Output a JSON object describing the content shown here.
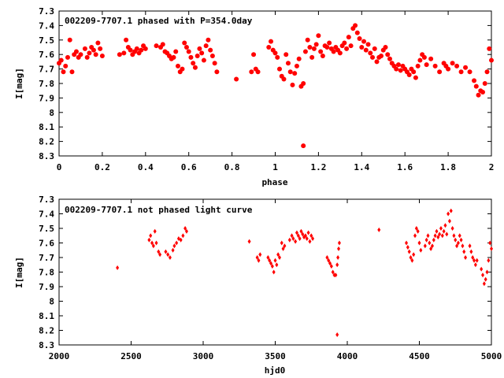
{
  "chart_data": [
    {
      "type": "scatter",
      "title": "002209-7707.1 phased with P=354.0day",
      "xlabel": "phase",
      "ylabel": "I[mag]",
      "xlim": [
        0,
        2
      ],
      "ylim": [
        7.3,
        8.3
      ],
      "y_inverted": true,
      "x_ticks": [
        "0",
        "0.2",
        "0.4",
        "0.6",
        "0.8",
        "1",
        "1.2",
        "1.4",
        "1.6",
        "1.8",
        "2"
      ],
      "y_ticks": [
        "7.3",
        "7.4",
        "7.5",
        "7.6",
        "7.7",
        "7.8",
        "7.9",
        "8",
        "8.1",
        "8.2",
        "8.3"
      ],
      "marker_color": "#ff0000",
      "marker": "filled-circle",
      "grid": false,
      "points": [
        [
          0.0,
          7.66
        ],
        [
          0.01,
          7.64
        ],
        [
          0.02,
          7.72
        ],
        [
          0.03,
          7.68
        ],
        [
          0.04,
          7.62
        ],
        [
          0.05,
          7.5
        ],
        [
          0.06,
          7.72
        ],
        [
          0.07,
          7.6
        ],
        [
          0.08,
          7.58
        ],
        [
          0.09,
          7.62
        ],
        [
          0.1,
          7.6
        ],
        [
          0.12,
          7.56
        ],
        [
          0.13,
          7.62
        ],
        [
          0.14,
          7.59
        ],
        [
          0.15,
          7.55
        ],
        [
          0.16,
          7.57
        ],
        [
          0.17,
          7.6
        ],
        [
          0.18,
          7.52
        ],
        [
          0.19,
          7.56
        ],
        [
          0.2,
          7.61
        ],
        [
          0.28,
          7.6
        ],
        [
          0.3,
          7.59
        ],
        [
          0.31,
          7.5
        ],
        [
          0.32,
          7.55
        ],
        [
          0.33,
          7.57
        ],
        [
          0.34,
          7.6
        ],
        [
          0.35,
          7.58
        ],
        [
          0.36,
          7.56
        ],
        [
          0.37,
          7.59
        ],
        [
          0.38,
          7.57
        ],
        [
          0.39,
          7.54
        ],
        [
          0.4,
          7.56
        ],
        [
          0.45,
          7.54
        ],
        [
          0.47,
          7.55
        ],
        [
          0.48,
          7.53
        ],
        [
          0.49,
          7.58
        ],
        [
          0.5,
          7.59
        ],
        [
          0.51,
          7.61
        ],
        [
          0.52,
          7.63
        ],
        [
          0.53,
          7.62
        ],
        [
          0.54,
          7.58
        ],
        [
          0.55,
          7.68
        ],
        [
          0.56,
          7.72
        ],
        [
          0.57,
          7.7
        ],
        [
          0.58,
          7.52
        ],
        [
          0.59,
          7.55
        ],
        [
          0.6,
          7.58
        ],
        [
          0.61,
          7.62
        ],
        [
          0.62,
          7.66
        ],
        [
          0.63,
          7.69
        ],
        [
          0.64,
          7.61
        ],
        [
          0.65,
          7.56
        ],
        [
          0.66,
          7.59
        ],
        [
          0.67,
          7.64
        ],
        [
          0.68,
          7.54
        ],
        [
          0.69,
          7.5
        ],
        [
          0.7,
          7.57
        ],
        [
          0.71,
          7.61
        ],
        [
          0.72,
          7.66
        ],
        [
          0.73,
          7.72
        ],
        [
          0.82,
          7.77
        ],
        [
          0.89,
          7.72
        ],
        [
          0.9,
          7.6
        ],
        [
          0.91,
          7.7
        ],
        [
          0.92,
          7.72
        ],
        [
          0.97,
          7.55
        ],
        [
          0.98,
          7.51
        ],
        [
          0.99,
          7.57
        ],
        [
          1.0,
          7.59
        ],
        [
          1.01,
          7.62
        ],
        [
          1.02,
          7.7
        ],
        [
          1.03,
          7.75
        ],
        [
          1.04,
          7.77
        ],
        [
          1.05,
          7.6
        ],
        [
          1.06,
          7.66
        ],
        [
          1.07,
          7.72
        ],
        [
          1.08,
          7.81
        ],
        [
          1.09,
          7.73
        ],
        [
          1.1,
          7.68
        ],
        [
          1.11,
          7.63
        ],
        [
          1.12,
          7.82
        ],
        [
          1.13,
          7.8
        ],
        [
          1.13,
          8.23
        ],
        [
          1.14,
          7.58
        ],
        [
          1.15,
          7.5
        ],
        [
          1.16,
          7.55
        ],
        [
          1.17,
          7.62
        ],
        [
          1.18,
          7.56
        ],
        [
          1.19,
          7.53
        ],
        [
          1.2,
          7.47
        ],
        [
          1.21,
          7.58
        ],
        [
          1.22,
          7.61
        ],
        [
          1.23,
          7.54
        ],
        [
          1.24,
          7.55
        ],
        [
          1.25,
          7.52
        ],
        [
          1.26,
          7.56
        ],
        [
          1.27,
          7.58
        ],
        [
          1.28,
          7.55
        ],
        [
          1.29,
          7.57
        ],
        [
          1.3,
          7.59
        ],
        [
          1.31,
          7.54
        ],
        [
          1.32,
          7.52
        ],
        [
          1.33,
          7.56
        ],
        [
          1.34,
          7.48
        ],
        [
          1.35,
          7.54
        ],
        [
          1.36,
          7.42
        ],
        [
          1.37,
          7.4
        ],
        [
          1.38,
          7.45
        ],
        [
          1.39,
          7.49
        ],
        [
          1.4,
          7.55
        ],
        [
          1.41,
          7.51
        ],
        [
          1.42,
          7.57
        ],
        [
          1.43,
          7.53
        ],
        [
          1.44,
          7.59
        ],
        [
          1.45,
          7.62
        ],
        [
          1.46,
          7.56
        ],
        [
          1.47,
          7.65
        ],
        [
          1.48,
          7.62
        ],
        [
          1.49,
          7.61
        ],
        [
          1.5,
          7.57
        ],
        [
          1.51,
          7.55
        ],
        [
          1.52,
          7.6
        ],
        [
          1.53,
          7.63
        ],
        [
          1.54,
          7.66
        ],
        [
          1.55,
          7.68
        ],
        [
          1.56,
          7.7
        ],
        [
          1.57,
          7.67
        ],
        [
          1.58,
          7.71
        ],
        [
          1.59,
          7.68
        ],
        [
          1.6,
          7.7
        ],
        [
          1.61,
          7.72
        ],
        [
          1.62,
          7.74
        ],
        [
          1.63,
          7.7
        ],
        [
          1.64,
          7.72
        ],
        [
          1.65,
          7.76
        ],
        [
          1.66,
          7.68
        ],
        [
          1.67,
          7.64
        ],
        [
          1.68,
          7.6
        ],
        [
          1.69,
          7.62
        ],
        [
          1.7,
          7.67
        ],
        [
          1.72,
          7.63
        ],
        [
          1.74,
          7.68
        ],
        [
          1.76,
          7.72
        ],
        [
          1.78,
          7.66
        ],
        [
          1.79,
          7.68
        ],
        [
          1.8,
          7.7
        ],
        [
          1.82,
          7.66
        ],
        [
          1.84,
          7.68
        ],
        [
          1.86,
          7.72
        ],
        [
          1.88,
          7.69
        ],
        [
          1.9,
          7.72
        ],
        [
          1.92,
          7.78
        ],
        [
          1.93,
          7.82
        ],
        [
          1.94,
          7.88
        ],
        [
          1.95,
          7.85
        ],
        [
          1.96,
          7.86
        ],
        [
          1.97,
          7.8
        ],
        [
          1.98,
          7.72
        ],
        [
          1.99,
          7.56
        ],
        [
          2.0,
          7.64
        ]
      ]
    },
    {
      "type": "scatter",
      "title": "002209-7707.1 not phased light curve",
      "xlabel": "hjd0",
      "ylabel": "I[mag]",
      "xlim": [
        2000,
        5000
      ],
      "ylim": [
        7.3,
        8.3
      ],
      "y_inverted": true,
      "x_ticks": [
        "2000",
        "2500",
        "3000",
        "3500",
        "4000",
        "4500",
        "5000"
      ],
      "y_ticks": [
        "7.3",
        "7.4",
        "7.5",
        "7.6",
        "7.7",
        "7.8",
        "7.9",
        "8",
        "8.1",
        "8.2",
        "8.3"
      ],
      "marker_color": "#ff0000",
      "marker": "small-diamond",
      "grid": false,
      "points": [
        [
          2405,
          7.77
        ],
        [
          2625,
          7.58
        ],
        [
          2635,
          7.55
        ],
        [
          2645,
          7.6
        ],
        [
          2655,
          7.62
        ],
        [
          2665,
          7.52
        ],
        [
          2675,
          7.6
        ],
        [
          2690,
          7.66
        ],
        [
          2700,
          7.68
        ],
        [
          2740,
          7.66
        ],
        [
          2755,
          7.68
        ],
        [
          2770,
          7.7
        ],
        [
          2790,
          7.65
        ],
        [
          2800,
          7.62
        ],
        [
          2815,
          7.6
        ],
        [
          2830,
          7.57
        ],
        [
          2845,
          7.58
        ],
        [
          2860,
          7.55
        ],
        [
          2875,
          7.5
        ],
        [
          2885,
          7.52
        ],
        [
          3320,
          7.59
        ],
        [
          3375,
          7.7
        ],
        [
          3385,
          7.72
        ],
        [
          3395,
          7.68
        ],
        [
          3450,
          7.7
        ],
        [
          3460,
          7.72
        ],
        [
          3470,
          7.74
        ],
        [
          3480,
          7.76
        ],
        [
          3490,
          7.8
        ],
        [
          3500,
          7.72
        ],
        [
          3510,
          7.75
        ],
        [
          3520,
          7.68
        ],
        [
          3530,
          7.7
        ],
        [
          3545,
          7.6
        ],
        [
          3555,
          7.64
        ],
        [
          3565,
          7.62
        ],
        [
          3600,
          7.58
        ],
        [
          3615,
          7.55
        ],
        [
          3625,
          7.57
        ],
        [
          3640,
          7.59
        ],
        [
          3650,
          7.53
        ],
        [
          3660,
          7.55
        ],
        [
          3670,
          7.57
        ],
        [
          3680,
          7.52
        ],
        [
          3690,
          7.54
        ],
        [
          3700,
          7.56
        ],
        [
          3710,
          7.55
        ],
        [
          3720,
          7.57
        ],
        [
          3730,
          7.53
        ],
        [
          3740,
          7.59
        ],
        [
          3750,
          7.55
        ],
        [
          3760,
          7.57
        ],
        [
          3860,
          7.7
        ],
        [
          3870,
          7.72
        ],
        [
          3880,
          7.74
        ],
        [
          3890,
          7.76
        ],
        [
          3900,
          7.8
        ],
        [
          3910,
          7.82
        ],
        [
          3920,
          7.82
        ],
        [
          3930,
          7.75
        ],
        [
          3935,
          7.7
        ],
        [
          3940,
          7.64
        ],
        [
          3945,
          7.6
        ],
        [
          3930,
          8.23
        ],
        [
          4220,
          7.51
        ],
        [
          4410,
          7.6
        ],
        [
          4420,
          7.63
        ],
        [
          4430,
          7.66
        ],
        [
          4440,
          7.7
        ],
        [
          4450,
          7.72
        ],
        [
          4460,
          7.68
        ],
        [
          4470,
          7.55
        ],
        [
          4480,
          7.5
        ],
        [
          4490,
          7.52
        ],
        [
          4500,
          7.6
        ],
        [
          4510,
          7.65
        ],
        [
          4540,
          7.62
        ],
        [
          4550,
          7.58
        ],
        [
          4560,
          7.55
        ],
        [
          4570,
          7.6
        ],
        [
          4580,
          7.64
        ],
        [
          4590,
          7.62
        ],
        [
          4600,
          7.58
        ],
        [
          4610,
          7.55
        ],
        [
          4620,
          7.52
        ],
        [
          4630,
          7.56
        ],
        [
          4640,
          7.54
        ],
        [
          4650,
          7.5
        ],
        [
          4660,
          7.55
        ],
        [
          4670,
          7.52
        ],
        [
          4680,
          7.48
        ],
        [
          4690,
          7.54
        ],
        [
          4700,
          7.4
        ],
        [
          4710,
          7.45
        ],
        [
          4720,
          7.38
        ],
        [
          4730,
          7.5
        ],
        [
          4740,
          7.55
        ],
        [
          4750,
          7.58
        ],
        [
          4760,
          7.62
        ],
        [
          4770,
          7.6
        ],
        [
          4780,
          7.55
        ],
        [
          4790,
          7.58
        ],
        [
          4800,
          7.62
        ],
        [
          4810,
          7.66
        ],
        [
          4820,
          7.7
        ],
        [
          4850,
          7.62
        ],
        [
          4860,
          7.66
        ],
        [
          4870,
          7.7
        ],
        [
          4880,
          7.72
        ],
        [
          4890,
          7.75
        ],
        [
          4900,
          7.72
        ],
        [
          4930,
          7.78
        ],
        [
          4940,
          7.82
        ],
        [
          4950,
          7.88
        ],
        [
          4960,
          7.85
        ],
        [
          4970,
          7.8
        ],
        [
          4980,
          7.72
        ],
        [
          4990,
          7.6
        ],
        [
          5000,
          7.64
        ]
      ]
    }
  ]
}
